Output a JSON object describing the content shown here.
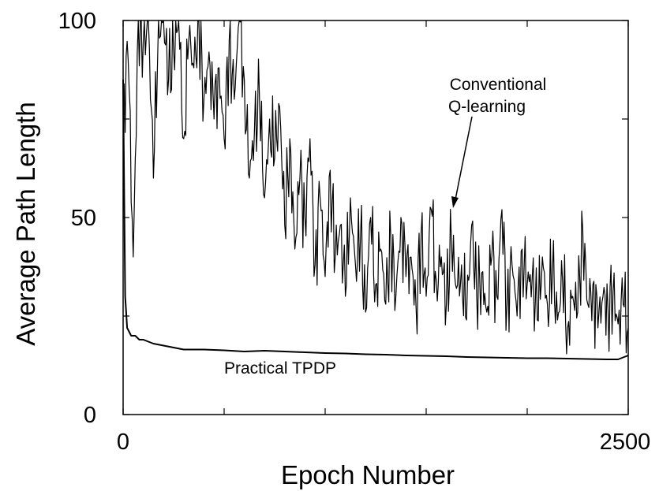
{
  "chart_data": {
    "type": "line",
    "title": "",
    "xlabel": "Epoch Number",
    "ylabel": "Average Path Length",
    "xlim": [
      0,
      2500
    ],
    "ylim": [
      0,
      100
    ],
    "x_tick_labels": [
      "0",
      "2500"
    ],
    "y_tick_labels": [
      "0",
      "50",
      "100"
    ],
    "grid": false,
    "annotations": {
      "conventional_line1": "Conventional",
      "conventional_line2": "Q-learning",
      "tpdp": "Practical TPDP"
    },
    "series": [
      {
        "key": "conventional",
        "x": [
          0,
          25,
          50,
          75,
          100,
          125,
          150,
          175,
          200,
          225,
          250,
          275,
          300,
          325,
          350,
          375,
          400,
          425,
          450,
          475,
          500,
          525,
          550,
          575,
          600,
          625,
          650,
          675,
          700,
          725,
          750,
          775,
          800,
          825,
          850,
          875,
          900,
          925,
          950,
          975,
          1000,
          1025,
          1050,
          1075,
          1100,
          1125,
          1150,
          1175,
          1200,
          1225,
          1250,
          1275,
          1300,
          1325,
          1350,
          1375,
          1400,
          1425,
          1450,
          1475,
          1500,
          1525,
          1550,
          1575,
          1600,
          1625,
          1650,
          1675,
          1700,
          1725,
          1750,
          1775,
          1800,
          1825,
          1850,
          1875,
          1900,
          1925,
          1950,
          1975,
          2000,
          2025,
          2050,
          2075,
          2100,
          2125,
          2150,
          2175,
          2200,
          2225,
          2250,
          2275,
          2300,
          2325,
          2350,
          2375,
          2400,
          2425,
          2450,
          2475,
          2500
        ],
        "values": [
          78,
          90,
          40,
          100,
          95,
          100,
          60,
          100,
          100,
          85,
          92,
          100,
          70,
          95,
          88,
          100,
          80,
          92,
          75,
          88,
          70,
          95,
          80,
          100,
          85,
          60,
          72,
          80,
          55,
          75,
          65,
          78,
          48,
          70,
          42,
          60,
          50,
          70,
          38,
          55,
          35,
          62,
          40,
          48,
          30,
          55,
          38,
          45,
          26,
          50,
          33,
          42,
          28,
          45,
          30,
          50,
          35,
          40,
          27,
          46,
          30,
          52,
          34,
          40,
          28,
          44,
          32,
          38,
          24,
          48,
          30,
          36,
          26,
          40,
          30,
          52,
          28,
          38,
          25,
          42,
          33,
          35,
          24,
          40,
          28,
          36,
          24,
          34,
          22,
          30,
          26,
          47,
          28,
          33,
          22,
          30,
          27,
          31,
          23,
          28,
          22
        ]
      },
      {
        "key": "tpdp",
        "x": [
          0,
          10,
          20,
          40,
          60,
          80,
          100,
          150,
          200,
          250,
          300,
          400,
          500,
          600,
          700,
          800,
          900,
          1000,
          1100,
          1200,
          1300,
          1400,
          1500,
          1600,
          1700,
          1800,
          1900,
          2000,
          2100,
          2200,
          2300,
          2400,
          2450,
          2500
        ],
        "values": [
          85,
          30,
          22,
          20,
          20,
          19,
          19,
          18,
          17.5,
          17,
          16.5,
          16.5,
          16.3,
          16,
          16.2,
          16,
          15.8,
          15.6,
          15.5,
          15.3,
          15.2,
          15.0,
          14.9,
          14.8,
          14.6,
          14.5,
          14.4,
          14.3,
          14.3,
          14.2,
          14.1,
          14.0,
          14.0,
          15.0
        ]
      }
    ]
  }
}
